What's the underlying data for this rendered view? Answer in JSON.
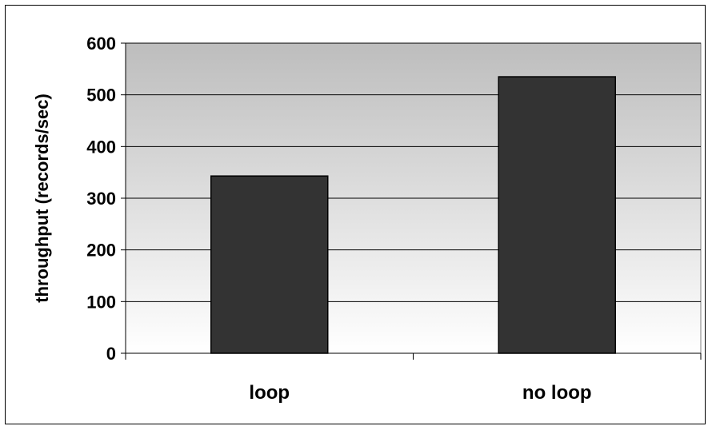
{
  "chart_data": {
    "type": "bar",
    "title": "",
    "xlabel": "",
    "ylabel": "throughput (records/sec)",
    "categories": [
      "loop",
      "no loop"
    ],
    "values": [
      343,
      535
    ],
    "ylim": [
      0,
      600
    ],
    "yticks": [
      0,
      100,
      200,
      300,
      400,
      500,
      600
    ],
    "ytick_labels": [
      "0",
      "100",
      "200",
      "300",
      "400",
      "500",
      "600"
    ],
    "grid": true,
    "legend": "none",
    "colors": {
      "bar": "#333333",
      "bar_edge": "#000000",
      "plot_bg_top": "#bdbdbd",
      "plot_bg_bottom": "#ffffff",
      "grid": "#000000"
    }
  }
}
